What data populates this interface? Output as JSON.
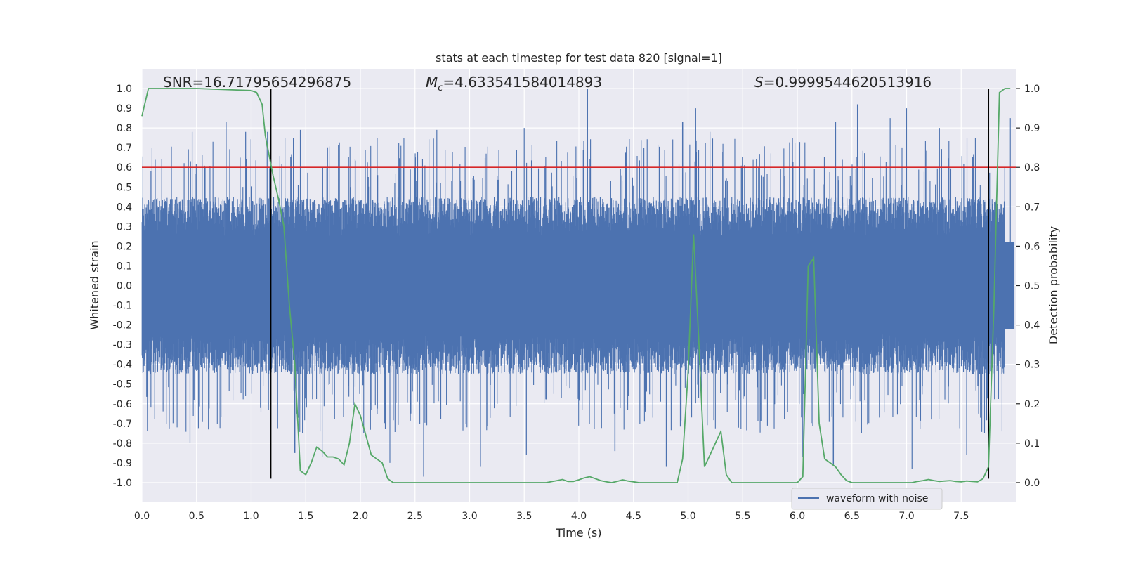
{
  "chart_data": {
    "type": "line",
    "title": "stats at each timestep for test data 820 [signal=1]",
    "xlabel": "Time (s)",
    "ylabel_left": "Whitened strain",
    "ylabel_right": "Detection probability",
    "xlim": [
      0.0,
      8.0
    ],
    "ylim_left": [
      -1.1,
      1.1
    ],
    "ylim_right": [
      -0.05,
      1.05
    ],
    "x_ticks": [
      "0.0",
      "0.5",
      "1.0",
      "1.5",
      "2.0",
      "2.5",
      "3.0",
      "3.5",
      "4.0",
      "4.5",
      "5.0",
      "5.5",
      "6.0",
      "6.5",
      "7.0",
      "7.5"
    ],
    "y_left_ticks": [
      "1.0",
      "0.9",
      "0.8",
      "0.7",
      "0.6",
      "0.5",
      "0.4",
      "0.3",
      "0.2",
      "0.1",
      "0.0",
      "-0.1",
      "-0.2",
      "-0.3",
      "-0.4",
      "-0.5",
      "-0.6",
      "-0.7",
      "-0.8",
      "-0.9",
      "-1.0"
    ],
    "y_right_ticks": [
      "1.0",
      "0.9",
      "0.8",
      "0.7",
      "0.6",
      "0.5",
      "0.4",
      "0.3",
      "0.2",
      "0.1",
      "0.0"
    ],
    "annotations": {
      "snr": "SNR=16.71795654296875",
      "mc_symbol": "M",
      "mc_sub": "c",
      "mc_value": "=4.633541584014893",
      "s_symbol": "S",
      "s_value": "=0.9999544620513916"
    },
    "threshold": {
      "value": 0.6,
      "color": "#d62728"
    },
    "vertical_lines": [
      1.18,
      7.75
    ],
    "waveform": {
      "name": "waveform with noise",
      "color": "#4c72b0",
      "typical_envelope": 0.45,
      "peaks": [
        {
          "t": 0.46,
          "v": 0.78
        },
        {
          "t": 0.77,
          "v": 0.83
        },
        {
          "t": 0.95,
          "v": 0.78
        },
        {
          "t": 1.15,
          "v": 0.78
        },
        {
          "t": 1.45,
          "v": 0.79
        },
        {
          "t": 2.7,
          "v": 0.79
        },
        {
          "t": 3.5,
          "v": 0.8
        },
        {
          "t": 4.08,
          "v": 1.0
        },
        {
          "t": 4.95,
          "v": 0.83
        },
        {
          "t": 5.07,
          "v": 0.9
        },
        {
          "t": 5.2,
          "v": 0.78
        },
        {
          "t": 6.35,
          "v": 0.83
        },
        {
          "t": 6.55,
          "v": 0.92
        },
        {
          "t": 6.85,
          "v": 0.85
        },
        {
          "t": 7.0,
          "v": 0.9
        },
        {
          "t": 7.3,
          "v": 0.8
        },
        {
          "t": 7.95,
          "v": 0.85
        }
      ],
      "troughs": [
        {
          "t": 0.05,
          "v": -0.74
        },
        {
          "t": 0.44,
          "v": -0.8
        },
        {
          "t": 1.4,
          "v": -0.85
        },
        {
          "t": 1.65,
          "v": -0.87
        },
        {
          "t": 2.27,
          "v": -0.9
        },
        {
          "t": 2.58,
          "v": -0.97
        },
        {
          "t": 3.1,
          "v": -0.92
        },
        {
          "t": 3.52,
          "v": -0.86
        },
        {
          "t": 4.33,
          "v": -0.84
        },
        {
          "t": 4.8,
          "v": -0.92
        },
        {
          "t": 6.05,
          "v": -0.87
        },
        {
          "t": 6.33,
          "v": -0.91
        },
        {
          "t": 7.05,
          "v": -0.93
        },
        {
          "t": 7.55,
          "v": -0.86
        }
      ]
    },
    "detection_probability": {
      "name": "Detection probability",
      "color": "#55a868",
      "x": [
        0.0,
        0.06,
        0.5,
        1.0,
        1.05,
        1.1,
        1.13,
        1.2,
        1.25,
        1.3,
        1.35,
        1.4,
        1.45,
        1.5,
        1.55,
        1.6,
        1.65,
        1.7,
        1.75,
        1.8,
        1.85,
        1.9,
        1.95,
        2.0,
        2.05,
        2.1,
        2.15,
        2.2,
        2.25,
        2.3,
        2.5,
        2.8,
        3.0,
        3.2,
        3.5,
        3.7,
        3.8,
        3.85,
        3.9,
        3.95,
        4.0,
        4.05,
        4.1,
        4.15,
        4.2,
        4.25,
        4.3,
        4.35,
        4.4,
        4.45,
        4.5,
        4.55,
        4.6,
        4.7,
        4.8,
        4.9,
        4.95,
        5.0,
        5.05,
        5.1,
        5.15,
        5.2,
        5.25,
        5.3,
        5.35,
        5.4,
        5.45,
        5.5,
        5.6,
        5.8,
        5.9,
        6.0,
        6.05,
        6.1,
        6.15,
        6.2,
        6.25,
        6.3,
        6.35,
        6.4,
        6.45,
        6.5,
        6.55,
        6.6,
        6.7,
        6.8,
        6.9,
        7.0,
        7.05,
        7.1,
        7.15,
        7.2,
        7.25,
        7.3,
        7.35,
        7.4,
        7.45,
        7.5,
        7.55,
        7.6,
        7.65,
        7.7,
        7.75,
        7.8,
        7.85,
        7.9,
        7.95
      ],
      "y": [
        0.93,
        1.0,
        1.0,
        0.995,
        0.99,
        0.96,
        0.88,
        0.78,
        0.72,
        0.65,
        0.45,
        0.3,
        0.03,
        0.02,
        0.05,
        0.09,
        0.08,
        0.065,
        0.065,
        0.06,
        0.045,
        0.1,
        0.2,
        0.17,
        0.12,
        0.07,
        0.06,
        0.05,
        0.01,
        0.0,
        0.0,
        0.0,
        0.0,
        0.0,
        0.0,
        0.0,
        0.005,
        0.008,
        0.003,
        0.003,
        0.007,
        0.012,
        0.015,
        0.01,
        0.005,
        0.002,
        0.0,
        0.003,
        0.007,
        0.004,
        0.002,
        0.0,
        0.0,
        0.0,
        0.0,
        0.0,
        0.06,
        0.28,
        0.63,
        0.35,
        0.04,
        0.07,
        0.1,
        0.13,
        0.02,
        0.0,
        0.0,
        0.0,
        0.0,
        0.0,
        0.0,
        0.0,
        0.015,
        0.55,
        0.57,
        0.15,
        0.06,
        0.05,
        0.04,
        0.02,
        0.005,
        0.0,
        0.0,
        0.0,
        0.0,
        0.0,
        0.0,
        0.0,
        0.0,
        0.003,
        0.005,
        0.008,
        0.005,
        0.003,
        0.004,
        0.005,
        0.003,
        0.002,
        0.004,
        0.003,
        0.002,
        0.01,
        0.04,
        0.45,
        0.99,
        1.0,
        1.0
      ]
    },
    "legend": {
      "placement": "bottom-right",
      "label": "waveform with noise"
    }
  }
}
